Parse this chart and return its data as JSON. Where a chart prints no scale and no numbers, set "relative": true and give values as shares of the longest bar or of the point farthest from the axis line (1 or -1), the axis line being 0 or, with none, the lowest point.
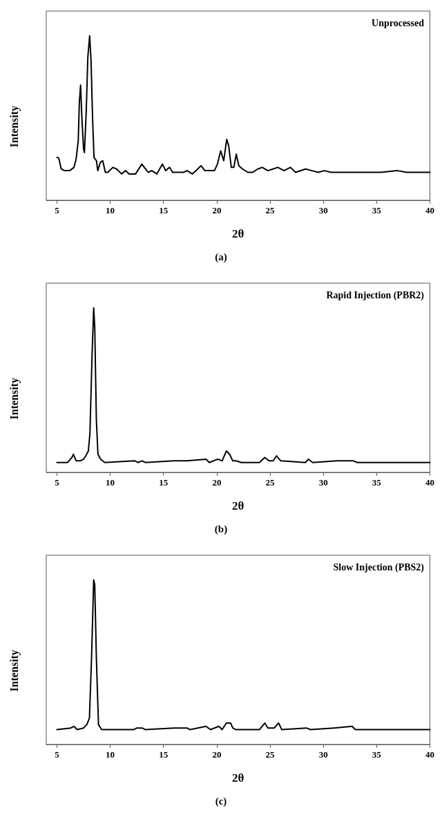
{
  "chart_data": [
    {
      "type": "line",
      "title": "(a)",
      "xlabel": "2θ",
      "ylabel": "Intensity",
      "annotations": [
        "Unprocessed"
      ],
      "relative": true,
      "xlim": [
        4,
        40
      ],
      "xticks": [
        5,
        10,
        15,
        20,
        25,
        30,
        35,
        40
      ],
      "tick_labels": "x",
      "marker": "none",
      "line_style": "solid",
      "color": "#000000",
      "x": [
        5.0,
        5.1,
        5.2,
        5.4,
        5.7,
        6.2,
        6.6,
        6.8,
        7.0,
        7.1,
        7.22,
        7.35,
        7.5,
        7.58,
        7.75,
        7.9,
        8.07,
        8.2,
        8.35,
        8.48,
        8.71,
        8.83,
        9.07,
        9.3,
        9.54,
        9.78,
        10.25,
        10.6,
        11.07,
        11.43,
        11.78,
        12.38,
        12.97,
        13.2,
        13.56,
        13.9,
        14.38,
        14.9,
        15.2,
        15.57,
        15.85,
        16.4,
        16.87,
        17.22,
        17.7,
        18.05,
        18.52,
        18.88,
        19.35,
        19.78,
        20.06,
        20.37,
        20.65,
        20.93,
        21.12,
        21.36,
        21.6,
        21.83,
        22.07,
        22.42,
        22.9,
        23.37,
        23.84,
        24.27,
        24.79,
        25.26,
        25.73,
        26.32,
        26.91,
        27.39,
        28.33,
        28.92,
        29.52,
        30.1,
        30.7,
        32.23,
        33.77,
        35.4,
        36.96,
        37.8,
        40
      ],
      "values": [
        0.26,
        0.26,
        0.25,
        0.19,
        0.18,
        0.18,
        0.2,
        0.25,
        0.36,
        0.59,
        0.7,
        0.49,
        0.31,
        0.29,
        0.54,
        0.87,
        1,
        0.85,
        0.49,
        0.26,
        0.24,
        0.18,
        0.23,
        0.24,
        0.17,
        0.17,
        0.2,
        0.19,
        0.16,
        0.18,
        0.16,
        0.16,
        0.22,
        0.2,
        0.17,
        0.18,
        0.16,
        0.22,
        0.18,
        0.2,
        0.17,
        0.17,
        0.17,
        0.18,
        0.16,
        0.18,
        0.21,
        0.18,
        0.18,
        0.18,
        0.22,
        0.3,
        0.24,
        0.37,
        0.33,
        0.2,
        0.2,
        0.28,
        0.21,
        0.19,
        0.17,
        0.17,
        0.19,
        0.2,
        0.18,
        0.19,
        0.2,
        0.18,
        0.2,
        0.17,
        0.19,
        0.18,
        0.17,
        0.18,
        0.17,
        0.17,
        0.17,
        0.17,
        0.18,
        0.17,
        0.17
      ]
    },
    {
      "type": "line",
      "title": "(b)",
      "xlabel": "2θ",
      "ylabel": "Intensity",
      "annotations": [
        "Rapid Injection (PBR2)"
      ],
      "relative": true,
      "xlim": [
        4,
        40
      ],
      "xticks": [
        5,
        10,
        15,
        20,
        25,
        30,
        35,
        40
      ],
      "tick_labels": "x",
      "marker": "none",
      "line_style": "solid",
      "color": "#000000",
      "x": [
        5.0,
        6.0,
        6.4,
        6.55,
        6.8,
        7.2,
        7.5,
        7.7,
        7.95,
        8.1,
        8.3,
        8.45,
        8.55,
        8.7,
        8.85,
        9.1,
        9.5,
        12.3,
        12.6,
        13.0,
        13.3,
        16.0,
        17.2,
        19.0,
        19.3,
        20.1,
        20.5,
        20.9,
        21.2,
        21.5,
        21.8,
        22.3,
        24.0,
        24.5,
        24.9,
        25.3,
        25.6,
        26.0,
        28.3,
        28.6,
        29.0,
        31.3,
        32.8,
        33.2,
        40
      ],
      "values": [
        0.06,
        0.06,
        0.09,
        0.11,
        0.07,
        0.07,
        0.08,
        0.1,
        0.13,
        0.24,
        0.72,
        1,
        0.88,
        0.32,
        0.11,
        0.08,
        0.06,
        0.07,
        0.06,
        0.07,
        0.06,
        0.07,
        0.07,
        0.08,
        0.06,
        0.08,
        0.07,
        0.13,
        0.11,
        0.07,
        0.07,
        0.06,
        0.06,
        0.09,
        0.07,
        0.07,
        0.1,
        0.07,
        0.06,
        0.08,
        0.06,
        0.07,
        0.07,
        0.06,
        0.06
      ]
    },
    {
      "type": "line",
      "title": "(c)",
      "xlabel": "2θ",
      "ylabel": "Intensity",
      "annotations": [
        "Slow Injection (PBS2)"
      ],
      "relative": true,
      "xlim": [
        4,
        40
      ],
      "xticks": [
        5,
        10,
        15,
        20,
        25,
        30,
        35,
        40
      ],
      "tick_labels": "x",
      "marker": "none",
      "line_style": "solid",
      "color": "#000000",
      "x": [
        5.0,
        6.3,
        6.6,
        6.9,
        7.5,
        7.8,
        8.05,
        8.25,
        8.45,
        8.55,
        8.7,
        8.9,
        9.2,
        12.2,
        12.5,
        13.0,
        13.3,
        16.0,
        17.2,
        17.5,
        19.0,
        19.4,
        20.2,
        20.5,
        20.9,
        21.3,
        21.5,
        21.8,
        24.0,
        24.5,
        24.8,
        25.4,
        25.8,
        26.1,
        28.4,
        28.8,
        31.0,
        32.7,
        33.0,
        40
      ],
      "values": [
        0.09,
        0.1,
        0.11,
        0.09,
        0.1,
        0.12,
        0.16,
        0.53,
        1,
        0.97,
        0.53,
        0.12,
        0.09,
        0.09,
        0.1,
        0.1,
        0.09,
        0.1,
        0.1,
        0.09,
        0.11,
        0.09,
        0.11,
        0.09,
        0.13,
        0.13,
        0.1,
        0.09,
        0.09,
        0.13,
        0.1,
        0.1,
        0.13,
        0.09,
        0.1,
        0.09,
        0.1,
        0.11,
        0.09,
        0.09
      ]
    }
  ]
}
